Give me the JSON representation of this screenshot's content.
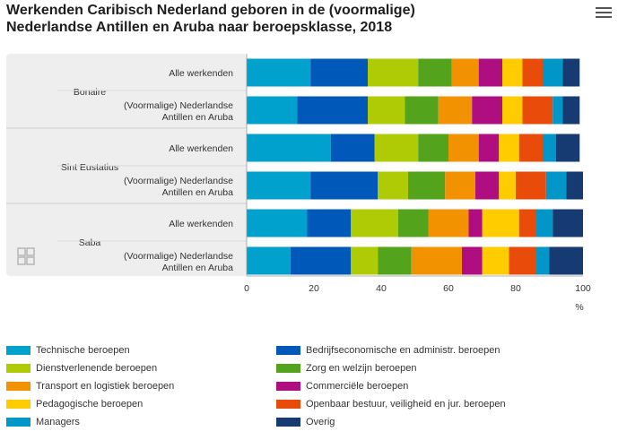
{
  "title_line1": "Werkenden Caribisch Nederland geboren in de (voormalige)",
  "title_line2": "Nederlandse Antillen en Aruba naar beroepsklasse, 2018",
  "chart_data": {
    "type": "bar",
    "orientation": "horizontal",
    "stacked": true,
    "title": "Werkenden Caribisch Nederland geboren in de (voormalige) Nederlandse Antillen en Aruba naar beroepsklasse, 2018",
    "xlabel": "%",
    "xlim": [
      0,
      100
    ],
    "xticks": [
      "0",
      "20",
      "40",
      "60",
      "80",
      "100"
    ],
    "groups": [
      "Bonaire",
      "Sint Eustatius",
      "Saba"
    ],
    "categories": [
      {
        "group": "Bonaire",
        "line1": "Alle werkenden",
        "line2": ""
      },
      {
        "group": "Bonaire",
        "line1": "(Voormalige) Nederlandse",
        "line2": "Antillen en Aruba"
      },
      {
        "group": "Sint Eustatius",
        "line1": "Alle werkenden",
        "line2": ""
      },
      {
        "group": "Sint Eustatius",
        "line1": "(Voormalige) Nederlandse",
        "line2": "Antillen en Aruba"
      },
      {
        "group": "Saba",
        "line1": "Alle werkenden",
        "line2": ""
      },
      {
        "group": "Saba",
        "line1": "(Voormalige) Nederlandse",
        "line2": "Antillen en Aruba"
      }
    ],
    "series": [
      {
        "name": "Technische beroepen",
        "color": "#00a1cd",
        "values": [
          19,
          15,
          25,
          19,
          18,
          13
        ]
      },
      {
        "name": "Bedrijfseconomische en administr. beroepen",
        "color": "#0058b8",
        "values": [
          17,
          21,
          13,
          20,
          13,
          18
        ]
      },
      {
        "name": "Dienstverlenende beroepen",
        "color": "#afcb05",
        "values": [
          15,
          11,
          13,
          9,
          14,
          8
        ]
      },
      {
        "name": "Zorg en welzijn beroepen",
        "color": "#53a31d",
        "values": [
          10,
          10,
          9,
          11,
          9,
          10
        ]
      },
      {
        "name": "Transport en logistiek beroepen",
        "color": "#f39200",
        "values": [
          8,
          10,
          9,
          9,
          12,
          15
        ]
      },
      {
        "name": "Commerciële beroepen",
        "color": "#af0e80",
        "values": [
          7,
          9,
          6,
          7,
          4,
          6
        ]
      },
      {
        "name": "Pedagogische beroepen",
        "color": "#ffcc00",
        "values": [
          6,
          6,
          6,
          5,
          11,
          8
        ]
      },
      {
        "name": "Openbaar bestuur, veiligheid en jur. beroepen",
        "color": "#e94c0a",
        "values": [
          6,
          9,
          7,
          9,
          5,
          8
        ]
      },
      {
        "name": "Managers",
        "color": "#0096c8",
        "values": [
          6,
          3,
          4,
          6,
          5,
          4
        ]
      },
      {
        "name": "Overig",
        "color": "#163a72",
        "values": [
          5,
          5,
          7,
          5,
          9,
          10
        ]
      }
    ],
    "legend_position": "bottom",
    "grid": false
  }
}
